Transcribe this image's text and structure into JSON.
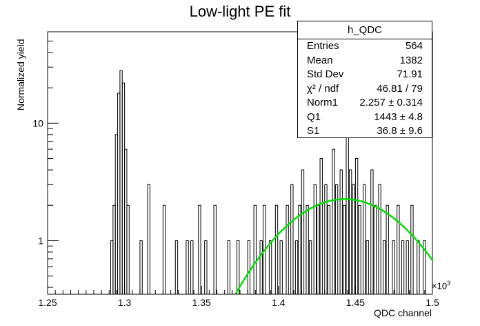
{
  "title": "Low-light PE fit",
  "xlabel": "QDC channel",
  "ylabel": "Normalized yield",
  "x_exponent_label": "×10",
  "x_exponent_power": "3",
  "stats_box": {
    "name": "h_QDC",
    "rows": [
      {
        "key": "Entries",
        "value": "564"
      },
      {
        "key": "Mean",
        "value": "1382"
      },
      {
        "key": "Std Dev",
        "value": "71.91"
      },
      {
        "key": "χ² / ndf",
        "value": "46.81 / 79"
      },
      {
        "key": "Norm1",
        "value": "2.257 ± 0.314"
      },
      {
        "key": "Q1",
        "value": "1443 ± 4.8"
      },
      {
        "key": "S1",
        "value": "36.8 ± 9.6"
      }
    ]
  },
  "colors": {
    "histogram": "#000000",
    "fit": "#00e000",
    "axis": "#000000"
  },
  "chart_data": {
    "type": "histogram",
    "title": "Low-light PE fit",
    "xlabel": "QDC channel",
    "ylabel": "Normalized yield",
    "xlim": [
      1250,
      1500
    ],
    "ylim": [
      0.35,
      60
    ],
    "yscale": "log",
    "x_ticks": [
      "1.25",
      "1.3",
      "1.35",
      "1.4",
      "1.45",
      "1.5"
    ],
    "x_tick_values": [
      1250,
      1300,
      1350,
      1400,
      1450,
      1500
    ],
    "y_ticks": [
      "1",
      "10"
    ],
    "y_tick_values": [
      1,
      10
    ],
    "bin_width": 1.5,
    "bins": [
      {
        "x": 1291,
        "y": 1
      },
      {
        "x": 1292.5,
        "y": 2
      },
      {
        "x": 1294,
        "y": 8
      },
      {
        "x": 1295.5,
        "y": 18
      },
      {
        "x": 1297,
        "y": 28
      },
      {
        "x": 1298.5,
        "y": 22
      },
      {
        "x": 1300,
        "y": 6
      },
      {
        "x": 1301.5,
        "y": 2
      },
      {
        "x": 1310,
        "y": 1
      },
      {
        "x": 1315,
        "y": 3
      },
      {
        "x": 1325,
        "y": 2
      },
      {
        "x": 1333,
        "y": 1
      },
      {
        "x": 1340,
        "y": 1
      },
      {
        "x": 1343,
        "y": 1
      },
      {
        "x": 1348,
        "y": 2
      },
      {
        "x": 1352,
        "y": 1
      },
      {
        "x": 1358,
        "y": 2
      },
      {
        "x": 1367,
        "y": 1
      },
      {
        "x": 1373,
        "y": 1
      },
      {
        "x": 1380,
        "y": 1
      },
      {
        "x": 1384,
        "y": 2
      },
      {
        "x": 1388,
        "y": 1
      },
      {
        "x": 1390,
        "y": 2
      },
      {
        "x": 1394,
        "y": 1
      },
      {
        "x": 1398,
        "y": 2
      },
      {
        "x": 1401,
        "y": 1
      },
      {
        "x": 1405,
        "y": 2
      },
      {
        "x": 1408,
        "y": 3
      },
      {
        "x": 1411,
        "y": 1
      },
      {
        "x": 1413,
        "y": 2
      },
      {
        "x": 1415,
        "y": 4
      },
      {
        "x": 1418,
        "y": 2
      },
      {
        "x": 1420,
        "y": 1
      },
      {
        "x": 1423,
        "y": 3
      },
      {
        "x": 1425,
        "y": 2
      },
      {
        "x": 1427,
        "y": 5
      },
      {
        "x": 1430,
        "y": 3
      },
      {
        "x": 1432,
        "y": 2
      },
      {
        "x": 1435,
        "y": 6
      },
      {
        "x": 1437,
        "y": 3
      },
      {
        "x": 1440,
        "y": 4
      },
      {
        "x": 1442,
        "y": 2
      },
      {
        "x": 1444,
        "y": 8
      },
      {
        "x": 1446,
        "y": 4
      },
      {
        "x": 1448,
        "y": 3
      },
      {
        "x": 1450,
        "y": 5
      },
      {
        "x": 1452,
        "y": 2
      },
      {
        "x": 1455,
        "y": 3
      },
      {
        "x": 1457,
        "y": 1
      },
      {
        "x": 1460,
        "y": 4
      },
      {
        "x": 1462,
        "y": 2
      },
      {
        "x": 1465,
        "y": 3
      },
      {
        "x": 1468,
        "y": 1
      },
      {
        "x": 1470,
        "y": 2
      },
      {
        "x": 1474,
        "y": 1
      },
      {
        "x": 1477,
        "y": 2
      },
      {
        "x": 1480,
        "y": 1
      },
      {
        "x": 1483,
        "y": 1
      },
      {
        "x": 1486,
        "y": 2
      },
      {
        "x": 1490,
        "y": 1
      },
      {
        "x": 1494,
        "y": 1
      }
    ],
    "fit": {
      "function": "gaus",
      "norm": 2.257,
      "mean": 1443,
      "sigma": 36.8,
      "x_range": [
        1372,
        1500
      ]
    }
  }
}
